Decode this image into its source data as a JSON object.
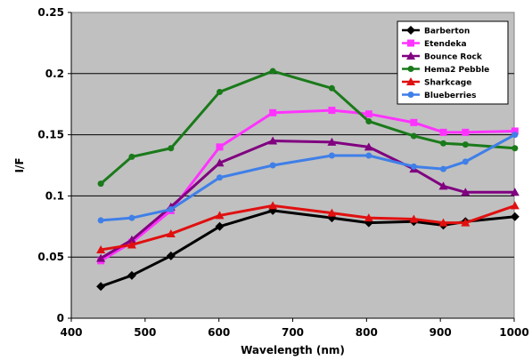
{
  "chart_data": {
    "type": "line",
    "title": "",
    "xlabel": "Wavelength (nm)",
    "ylabel": "I/F",
    "xlim": [
      400,
      1000
    ],
    "ylim": [
      0,
      0.25
    ],
    "x_ticks": [
      "400",
      "500",
      "600",
      "700",
      "800",
      "900",
      "1000"
    ],
    "y_ticks": [
      "0",
      "0.05",
      "0.1",
      "0.15",
      "0.2",
      "0.25"
    ],
    "grid": "horizontal",
    "legend_position": "top-right",
    "background_color": "#c0c0c0",
    "series": [
      {
        "name": "Barberton",
        "color": "#000000",
        "marker": "diamond",
        "x": [
          440,
          482,
          535,
          601,
          673,
          753,
          803,
          864,
          904,
          934,
          1001
        ],
        "y": [
          0.026,
          0.035,
          0.051,
          0.075,
          0.088,
          0.082,
          0.078,
          0.079,
          0.076,
          0.079,
          0.083
        ]
      },
      {
        "name": "Etendeka",
        "color": "#ff33ff",
        "marker": "square",
        "x": [
          440,
          482,
          535,
          601,
          673,
          753,
          803,
          864,
          904,
          934,
          1001
        ],
        "y": [
          0.047,
          0.062,
          0.088,
          0.14,
          0.168,
          0.17,
          0.167,
          0.16,
          0.152,
          0.152,
          0.153
        ]
      },
      {
        "name": "Bounce Rock",
        "color": "#800080",
        "marker": "triangle",
        "x": [
          440,
          482,
          535,
          601,
          673,
          753,
          803,
          864,
          904,
          934,
          1001
        ],
        "y": [
          0.049,
          0.064,
          0.091,
          0.127,
          0.145,
          0.144,
          0.14,
          0.122,
          0.108,
          0.103,
          0.103
        ]
      },
      {
        "name": "Hema2 Pebble",
        "color": "#1a7a1a",
        "marker": "circle",
        "x": [
          440,
          482,
          535,
          601,
          673,
          753,
          803,
          864,
          904,
          934,
          1001
        ],
        "y": [
          0.11,
          0.132,
          0.139,
          0.185,
          0.202,
          0.188,
          0.161,
          0.149,
          0.143,
          0.142,
          0.139
        ]
      },
      {
        "name": "Sharkcage",
        "color": "#e01010",
        "marker": "triangle",
        "x": [
          440,
          482,
          535,
          601,
          673,
          753,
          803,
          864,
          904,
          934,
          1001
        ],
        "y": [
          0.056,
          0.06,
          0.069,
          0.084,
          0.092,
          0.086,
          0.082,
          0.081,
          0.078,
          0.078,
          0.092
        ]
      },
      {
        "name": "Blueberries",
        "color": "#3f7fe8",
        "marker": "circle",
        "x": [
          440,
          482,
          535,
          601,
          673,
          753,
          803,
          864,
          904,
          934,
          1001
        ],
        "y": [
          0.08,
          0.082,
          0.089,
          0.115,
          0.125,
          0.133,
          0.133,
          0.124,
          0.122,
          0.128,
          0.15
        ]
      }
    ]
  }
}
